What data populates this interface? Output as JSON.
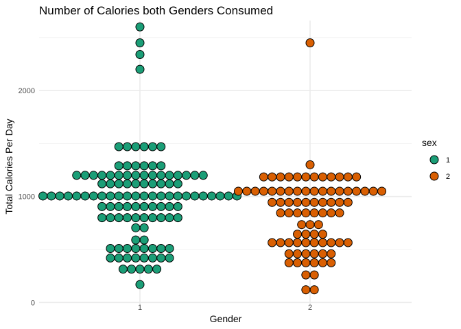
{
  "chart_data": {
    "type": "scatter",
    "subtype": "dotplot",
    "title": "Number of Calories both Genders Consumed",
    "xlabel": "Gender",
    "ylabel": "Total Calories Per Day",
    "categories": [
      "1",
      "2"
    ],
    "ylim": [
      -30,
      2660
    ],
    "yticks": [
      0,
      1000,
      2000
    ],
    "grid": true,
    "legend": {
      "title": "sex",
      "position": "right",
      "entries": [
        {
          "label": "1",
          "color": "#1b9e77"
        },
        {
          "label": "2",
          "color": "#d95f02"
        }
      ]
    },
    "series": [
      {
        "name": "1",
        "category": "1",
        "color": "#1b9e77",
        "bins": [
          {
            "y": 2600,
            "count": 1
          },
          {
            "y": 2450,
            "count": 1
          },
          {
            "y": 2340,
            "count": 1
          },
          {
            "y": 2200,
            "count": 1
          },
          {
            "y": 1470,
            "count": 6
          },
          {
            "y": 1290,
            "count": 6
          },
          {
            "y": 1200,
            "count": 16
          },
          {
            "y": 1120,
            "count": 10
          },
          {
            "y": 1005,
            "count": 24
          },
          {
            "y": 905,
            "count": 10
          },
          {
            "y": 800,
            "count": 10
          },
          {
            "y": 705,
            "count": 2
          },
          {
            "y": 590,
            "count": 2
          },
          {
            "y": 510,
            "count": 8
          },
          {
            "y": 420,
            "count": 8
          },
          {
            "y": 315,
            "count": 5
          },
          {
            "y": 170,
            "count": 1
          }
        ]
      },
      {
        "name": "2",
        "category": "2",
        "color": "#d95f02",
        "bins": [
          {
            "y": 2450,
            "count": 1
          },
          {
            "y": 1300,
            "count": 1
          },
          {
            "y": 1185,
            "count": 12
          },
          {
            "y": 1050,
            "count": 18
          },
          {
            "y": 945,
            "count": 10
          },
          {
            "y": 845,
            "count": 8
          },
          {
            "y": 735,
            "count": 3
          },
          {
            "y": 645,
            "count": 4
          },
          {
            "y": 565,
            "count": 10
          },
          {
            "y": 460,
            "count": 6
          },
          {
            "y": 375,
            "count": 6
          },
          {
            "y": 260,
            "count": 2
          },
          {
            "y": 120,
            "count": 2
          }
        ]
      }
    ]
  }
}
